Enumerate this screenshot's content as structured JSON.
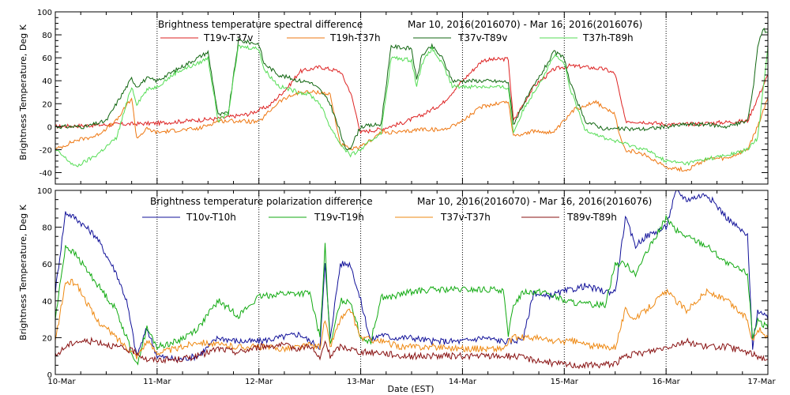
{
  "chart_data": [
    {
      "type": "line",
      "title": "Brightness temperature spectral difference",
      "date_range": "Mar 10, 2016(2016070) - Mar 16, 2016(2016076)",
      "ylabel": "Brightness Temperature, Deg K",
      "xlabel": "",
      "ylim": [
        -50,
        100
      ],
      "yticks": [
        -40,
        -20,
        0,
        20,
        40,
        60,
        80,
        100
      ],
      "xlim": [
        0,
        7
      ],
      "x_tick_labels": [
        "10-Mar",
        "11-Mar",
        "12-Mar",
        "13-Mar",
        "14-Mar",
        "15-Mar",
        "16-Mar",
        "17-Mar"
      ],
      "grid": "vertical dotted lines at each day",
      "legend_placement": "top",
      "series": [
        {
          "name": "T19v-T37v",
          "color": "#dd2222",
          "x": [
            0,
            0.3,
            0.6,
            1.0,
            1.3,
            1.6,
            1.9,
            2.1,
            2.3,
            2.4,
            2.6,
            2.8,
            2.9,
            3.0,
            3.2,
            3.4,
            3.6,
            3.8,
            4.0,
            4.2,
            4.45,
            4.5,
            4.7,
            4.9,
            5.05,
            5.2,
            5.4,
            5.5,
            5.6,
            5.8,
            6.0,
            6.2,
            6.4,
            6.6,
            6.8,
            6.9,
            7.0
          ],
          "y": [
            0,
            1,
            2,
            3,
            5,
            7,
            11,
            18,
            36,
            48,
            52,
            48,
            30,
            -5,
            -2,
            3,
            10,
            20,
            40,
            58,
            59,
            5,
            35,
            50,
            53,
            52,
            50,
            46,
            5,
            4,
            2,
            2,
            3,
            4,
            5,
            25,
            45
          ]
        },
        {
          "name": "T19h-T37h",
          "color": "#ee7711",
          "x": [
            0,
            0.2,
            0.4,
            0.6,
            0.75,
            0.8,
            0.9,
            1.0,
            1.2,
            1.4,
            1.6,
            1.8,
            2.0,
            2.2,
            2.4,
            2.6,
            2.7,
            2.8,
            2.9,
            3.0,
            3.2,
            3.4,
            3.6,
            3.8,
            4.0,
            4.2,
            4.45,
            4.5,
            4.7,
            4.9,
            5.1,
            5.3,
            5.5,
            5.55,
            5.6,
            5.8,
            6.0,
            6.2,
            6.4,
            6.6,
            6.8,
            6.9,
            7.0
          ],
          "y": [
            -20,
            -12,
            -8,
            5,
            25,
            -10,
            -2,
            -5,
            -3,
            -2,
            5,
            5,
            4,
            22,
            30,
            30,
            28,
            -15,
            -20,
            -18,
            -5,
            -5,
            -2,
            -3,
            5,
            18,
            22,
            -8,
            -4,
            -5,
            15,
            22,
            10,
            -10,
            -20,
            -25,
            -35,
            -38,
            -28,
            -28,
            -20,
            0,
            25
          ]
        },
        {
          "name": "T37v-T89v",
          "color": "#116611",
          "x": [
            0,
            0.3,
            0.5,
            0.6,
            0.75,
            0.8,
            0.9,
            1.0,
            1.2,
            1.4,
            1.5,
            1.6,
            1.7,
            1.8,
            2.0,
            2.05,
            2.2,
            2.4,
            2.5,
            2.6,
            2.7,
            2.8,
            2.85,
            2.9,
            3.0,
            3.2,
            3.3,
            3.5,
            3.55,
            3.6,
            3.7,
            3.8,
            3.9,
            4.0,
            4.2,
            4.45,
            4.5,
            4.6,
            4.8,
            4.9,
            5.0,
            5.05,
            5.2,
            5.4,
            5.6,
            5.8,
            6.0,
            6.2,
            6.4,
            6.6,
            6.8,
            6.85,
            6.9,
            6.95,
            7.0
          ],
          "y": [
            0,
            0,
            5,
            20,
            42,
            35,
            42,
            40,
            50,
            60,
            65,
            10,
            12,
            75,
            72,
            55,
            45,
            40,
            39,
            32,
            20,
            -5,
            -20,
            -18,
            0,
            2,
            70,
            68,
            40,
            62,
            70,
            60,
            40,
            40,
            40,
            39,
            2,
            20,
            50,
            65,
            60,
            40,
            5,
            -2,
            -2,
            -2,
            0,
            2,
            2,
            0,
            5,
            30,
            70,
            85,
            82
          ]
        },
        {
          "name": "T37h-T89h",
          "color": "#55dd55",
          "x": [
            0,
            0.2,
            0.4,
            0.6,
            0.75,
            0.8,
            0.9,
            1.0,
            1.2,
            1.4,
            1.5,
            1.6,
            1.7,
            1.8,
            2.0,
            2.05,
            2.2,
            2.4,
            2.5,
            2.6,
            2.7,
            2.8,
            2.9,
            3.0,
            3.2,
            3.3,
            3.5,
            3.55,
            3.6,
            3.7,
            3.8,
            3.9,
            4.0,
            4.2,
            4.45,
            4.5,
            4.6,
            4.8,
            4.9,
            5.0,
            5.05,
            5.2,
            5.4,
            5.6,
            5.8,
            6.0,
            6.2,
            6.4,
            6.6,
            6.8,
            6.9,
            7.0
          ],
          "y": [
            -20,
            -35,
            -25,
            -10,
            35,
            20,
            32,
            35,
            48,
            55,
            60,
            5,
            12,
            70,
            68,
            50,
            35,
            30,
            28,
            20,
            0,
            -15,
            -25,
            -20,
            -5,
            60,
            58,
            35,
            55,
            68,
            55,
            35,
            35,
            35,
            34,
            -5,
            15,
            45,
            62,
            55,
            35,
            -2,
            -10,
            -15,
            -20,
            -30,
            -32,
            -28,
            -25,
            -20,
            -10,
            70
          ]
        }
      ]
    },
    {
      "type": "line",
      "title": "Brightness temperature polarization difference",
      "date_range": "Mar 10, 2016(2016070) - Mar 16, 2016(2016076)",
      "ylabel": "Brightness Temperature, Deg K",
      "xlabel": "Date (EST)",
      "ylim": [
        0,
        100
      ],
      "yticks": [
        0,
        20,
        40,
        60,
        80,
        100
      ],
      "xlim": [
        0,
        7
      ],
      "x_tick_labels": [
        "10-Mar",
        "11-Mar",
        "12-Mar",
        "13-Mar",
        "14-Mar",
        "15-Mar",
        "16-Mar",
        "17-Mar"
      ],
      "grid": "vertical dotted lines at each day",
      "legend_placement": "top",
      "series": [
        {
          "name": "T10v-T10h",
          "color": "#111199",
          "x": [
            0,
            0.1,
            0.2,
            0.4,
            0.6,
            0.7,
            0.8,
            0.9,
            1.0,
            1.2,
            1.4,
            1.5,
            1.6,
            1.8,
            2.0,
            2.2,
            2.4,
            2.5,
            2.6,
            2.65,
            2.7,
            2.8,
            2.9,
            3.0,
            3.1,
            3.2,
            3.3,
            3.5,
            3.7,
            3.8,
            4.0,
            4.2,
            4.4,
            4.5,
            4.6,
            4.7,
            4.8,
            5.0,
            5.2,
            5.4,
            5.5,
            5.6,
            5.7,
            5.8,
            6.0,
            6.1,
            6.2,
            6.4,
            6.6,
            6.8,
            6.85,
            6.9,
            7.0
          ],
          "y": [
            45,
            88,
            85,
            75,
            55,
            40,
            10,
            25,
            10,
            8,
            10,
            15,
            20,
            18,
            18,
            20,
            22,
            18,
            15,
            60,
            20,
            60,
            60,
            40,
            18,
            22,
            20,
            20,
            18,
            18,
            18,
            20,
            18,
            18,
            20,
            45,
            42,
            45,
            48,
            45,
            45,
            85,
            70,
            75,
            80,
            100,
            95,
            98,
            85,
            75,
            15,
            35,
            30
          ]
        },
        {
          "name": "T19v-T19h",
          "color": "#11aa11",
          "x": [
            0,
            0.1,
            0.2,
            0.4,
            0.6,
            0.7,
            0.8,
            0.9,
            1.0,
            1.2,
            1.4,
            1.6,
            1.8,
            2.0,
            2.2,
            2.4,
            2.5,
            2.6,
            2.65,
            2.7,
            2.8,
            2.9,
            3.0,
            3.1,
            3.2,
            3.3,
            3.5,
            3.7,
            3.8,
            4.0,
            4.2,
            4.4,
            4.45,
            4.5,
            4.6,
            4.8,
            5.0,
            5.2,
            5.4,
            5.5,
            5.6,
            5.7,
            6.0,
            6.1,
            6.2,
            6.4,
            6.6,
            6.8,
            6.85,
            6.9,
            7.0
          ],
          "y": [
            30,
            70,
            65,
            50,
            35,
            20,
            5,
            25,
            15,
            18,
            25,
            40,
            32,
            42,
            44,
            44,
            44,
            20,
            70,
            15,
            40,
            40,
            20,
            18,
            42,
            42,
            45,
            46,
            46,
            46,
            46,
            46,
            20,
            38,
            45,
            45,
            40,
            38,
            38,
            60,
            60,
            55,
            85,
            78,
            75,
            70,
            60,
            55,
            20,
            30,
            25
          ]
        },
        {
          "name": "T37v-T37h",
          "color": "#ee8811",
          "x": [
            0,
            0.1,
            0.2,
            0.4,
            0.6,
            0.7,
            0.8,
            0.9,
            1.0,
            1.2,
            1.4,
            1.6,
            1.8,
            2.0,
            2.2,
            2.4,
            2.5,
            2.6,
            2.65,
            2.7,
            2.8,
            2.9,
            3.0,
            3.2,
            3.4,
            3.6,
            3.8,
            4.0,
            4.2,
            4.4,
            4.5,
            4.7,
            4.9,
            5.1,
            5.3,
            5.5,
            5.6,
            5.7,
            6.0,
            6.1,
            6.2,
            6.4,
            6.6,
            6.8,
            6.85,
            6.9,
            7.0
          ],
          "y": [
            18,
            50,
            50,
            30,
            20,
            15,
            10,
            18,
            12,
            14,
            18,
            16,
            15,
            15,
            14,
            15,
            16,
            15,
            30,
            15,
            30,
            35,
            20,
            18,
            15,
            15,
            15,
            14,
            14,
            14,
            20,
            20,
            18,
            18,
            15,
            15,
            35,
            30,
            45,
            40,
            35,
            45,
            40,
            30,
            18,
            25,
            20
          ]
        },
        {
          "name": "T89v-T89h",
          "color": "#881111",
          "x": [
            0,
            0.1,
            0.2,
            0.4,
            0.6,
            0.8,
            0.9,
            1.0,
            1.2,
            1.4,
            1.6,
            1.8,
            2.0,
            2.2,
            2.4,
            2.5,
            2.6,
            2.65,
            2.7,
            2.8,
            2.9,
            3.0,
            3.2,
            3.4,
            3.6,
            3.8,
            4.0,
            4.2,
            4.4,
            4.5,
            4.7,
            4.9,
            5.1,
            5.3,
            5.5,
            5.6,
            5.8,
            6.0,
            6.2,
            6.4,
            6.6,
            6.8,
            6.9,
            7.0
          ],
          "y": [
            10,
            15,
            18,
            18,
            15,
            12,
            8,
            8,
            8,
            10,
            14,
            12,
            15,
            16,
            14,
            16,
            8,
            18,
            10,
            15,
            14,
            12,
            12,
            10,
            10,
            10,
            10,
            10,
            10,
            10,
            8,
            6,
            5,
            5,
            6,
            10,
            12,
            15,
            18,
            15,
            15,
            12,
            10,
            8
          ]
        }
      ]
    }
  ]
}
